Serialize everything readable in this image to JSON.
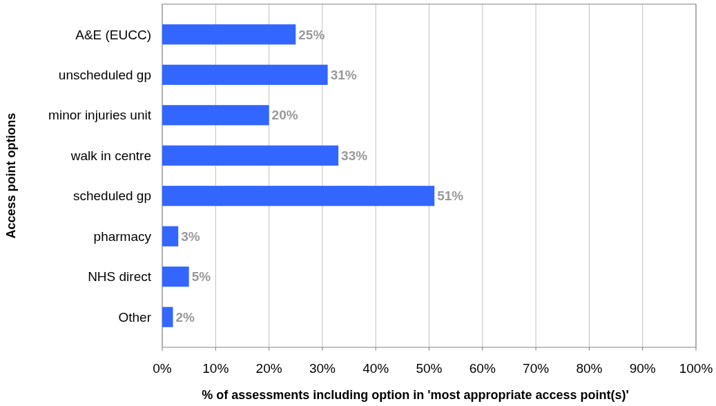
{
  "chart_data": {
    "type": "bar",
    "orientation": "horizontal",
    "xlabel": "% of assessments including option in 'most appropriate access point(s)'",
    "ylabel": "Access point options",
    "categories": [
      "A&E (EUCC)",
      "unscheduled gp",
      "minor injuries unit",
      "walk in centre",
      "scheduled gp",
      "pharmacy",
      "NHS direct",
      "Other"
    ],
    "values": [
      25,
      31,
      20,
      33,
      51,
      3,
      5,
      2
    ],
    "value_labels": [
      "25%",
      "31%",
      "20%",
      "33%",
      "51%",
      "3%",
      "5%",
      "2%"
    ],
    "color": "#3366ff",
    "xlim": [
      0,
      100
    ],
    "xticks": [
      {
        "value": 0,
        "label": "0%"
      },
      {
        "value": 10,
        "label": "10%"
      },
      {
        "value": 20,
        "label": "20%"
      },
      {
        "value": 30,
        "label": "30%"
      },
      {
        "value": 40,
        "label": "40%"
      },
      {
        "value": 50,
        "label": "50%"
      },
      {
        "value": 60,
        "label": "60%"
      },
      {
        "value": 70,
        "label": "70%"
      },
      {
        "value": 80,
        "label": "80%"
      },
      {
        "value": 90,
        "label": "90%"
      },
      {
        "value": 100,
        "label": "100%"
      }
    ],
    "grid": "x"
  }
}
